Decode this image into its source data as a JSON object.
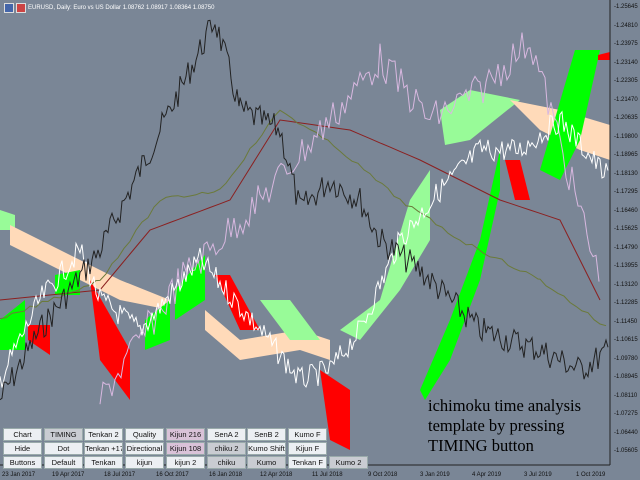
{
  "window": {
    "title": "EURUSD, Daily:  Euro vs US Dollar  1.08762 1.08917 1.08364 1.08750"
  },
  "price_axis": [
    "1.25645",
    "1.24810",
    "1.23975",
    "1.23140",
    "1.22305",
    "1.21470",
    "1.20635",
    "1.19800",
    "1.18965",
    "1.18130",
    "1.17295",
    "1.16460",
    "1.15625",
    "1.14790",
    "1.13955",
    "1.13120",
    "1.12285",
    "1.11450",
    "1.10615",
    "1.09780",
    "1.08945",
    "1.08110",
    "1.07275",
    "1.06440",
    "1.05605"
  ],
  "time_axis": [
    "23 Jan 2017",
    "19 Apr 2017",
    "18 Jul 2017",
    "16 Oct 2017",
    "16 Jan 2018",
    "12 Apr 2018",
    "11 Jul 2018",
    "9 Oct 2018",
    "3 Jan 2019",
    "4 Apr 2019",
    "3 Jul 2019",
    "1 Oct 2019"
  ],
  "buttons": [
    [
      {
        "label": "Chart",
        "state": "normal"
      },
      {
        "label": "TIMING",
        "state": "pressed"
      },
      {
        "label": "Tenkan 2",
        "state": "normal"
      },
      {
        "label": "Quality",
        "state": "normal"
      },
      {
        "label": "Kijun 216",
        "state": "pink"
      },
      {
        "label": "SenA 2",
        "state": "normal"
      },
      {
        "label": "SenB 2",
        "state": "normal"
      },
      {
        "label": "Kumo F",
        "state": "normal"
      }
    ],
    [
      {
        "label": "Hide",
        "state": "normal"
      },
      {
        "label": "Dot",
        "state": "normal"
      },
      {
        "label": "Tenkan +17",
        "state": "normal"
      },
      {
        "label": "Directional",
        "state": "normal"
      },
      {
        "label": "Kijun 108",
        "state": "pink"
      },
      {
        "label": "chiku 2",
        "state": "pressed"
      },
      {
        "label": "Kumo Shift",
        "state": "normal"
      },
      {
        "label": "Kijun F",
        "state": "normal"
      }
    ],
    [
      {
        "label": "Buttons",
        "state": "normal"
      },
      {
        "label": "Default",
        "state": "normal"
      },
      {
        "label": "Tenkan",
        "state": "normal"
      },
      {
        "label": "kijun",
        "state": "normal"
      },
      {
        "label": "kijun 2",
        "state": "normal"
      },
      {
        "label": "chiku",
        "state": "pressed"
      },
      {
        "label": "Kumo",
        "state": "pressed"
      },
      {
        "label": "Tenkan F",
        "state": "normal"
      },
      {
        "label": "Kumo 2",
        "state": "pressed"
      }
    ]
  ],
  "overlay_text": "ichimoku time analysis template by pressing TIMING button",
  "colors": {
    "background": "#7a8696",
    "price": "#222222",
    "kumo_bull_light": "#98fb98",
    "kumo_bull": "#00ff00",
    "kumo_bear": "#ff0000",
    "kumo_peach": "#ffdab9",
    "chikou": "#ffffff",
    "senkou2": "#d8b8e0",
    "kijun": "#8b2020",
    "tenkan": "#6b7a3a"
  }
}
